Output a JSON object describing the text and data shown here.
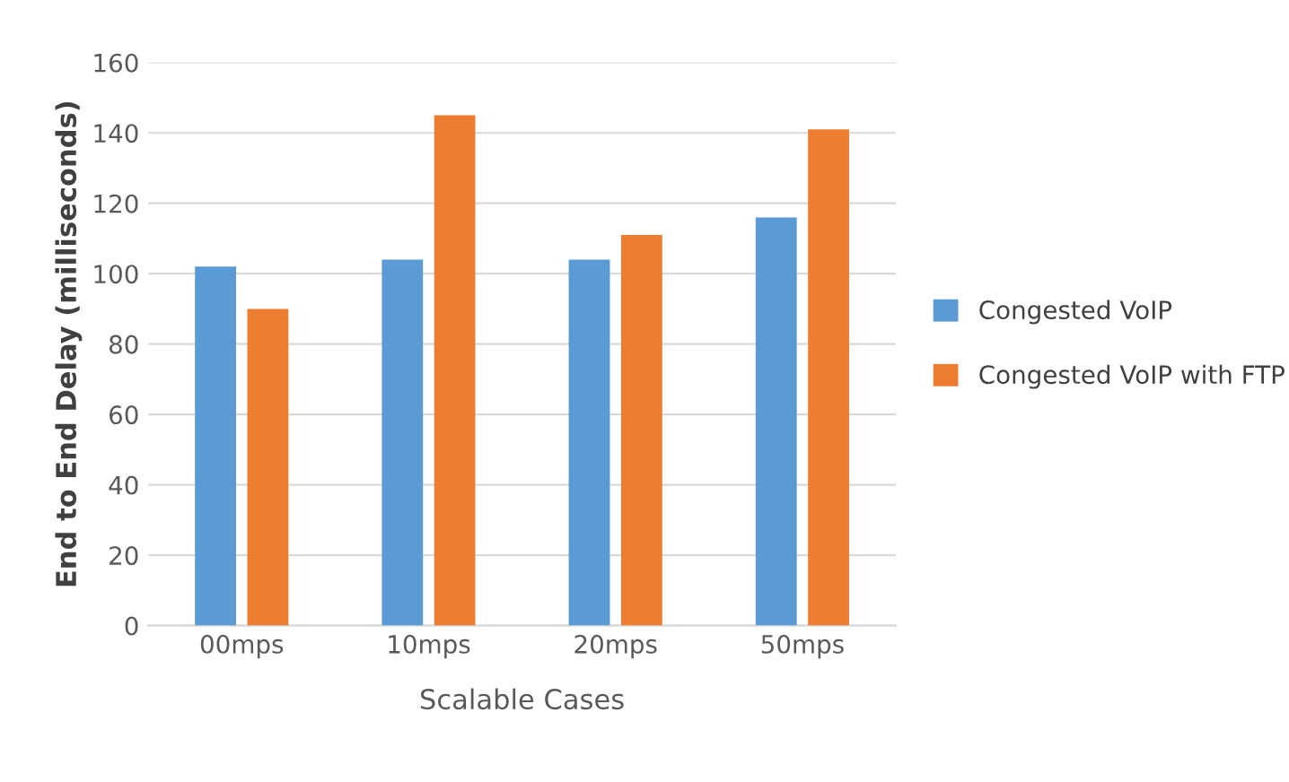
{
  "chart_data": {
    "type": "bar",
    "xlabel": "Scalable Cases",
    "ylabel": "End to End Delay (milliseconds)",
    "categories": [
      "00mps",
      "10mps",
      "20mps",
      "50mps"
    ],
    "series": [
      {
        "name": "Congested VoIP",
        "color": "#5b9bd5",
        "values": [
          102,
          104,
          104,
          116
        ]
      },
      {
        "name": "Congested VoIP with FTP",
        "color": "#ed7d31",
        "values": [
          90,
          145,
          111,
          141
        ]
      }
    ],
    "ylim": [
      0,
      160
    ],
    "yticks": [
      0,
      20,
      40,
      60,
      80,
      100,
      120,
      140,
      160
    ],
    "grid": "y",
    "legend": "right"
  }
}
